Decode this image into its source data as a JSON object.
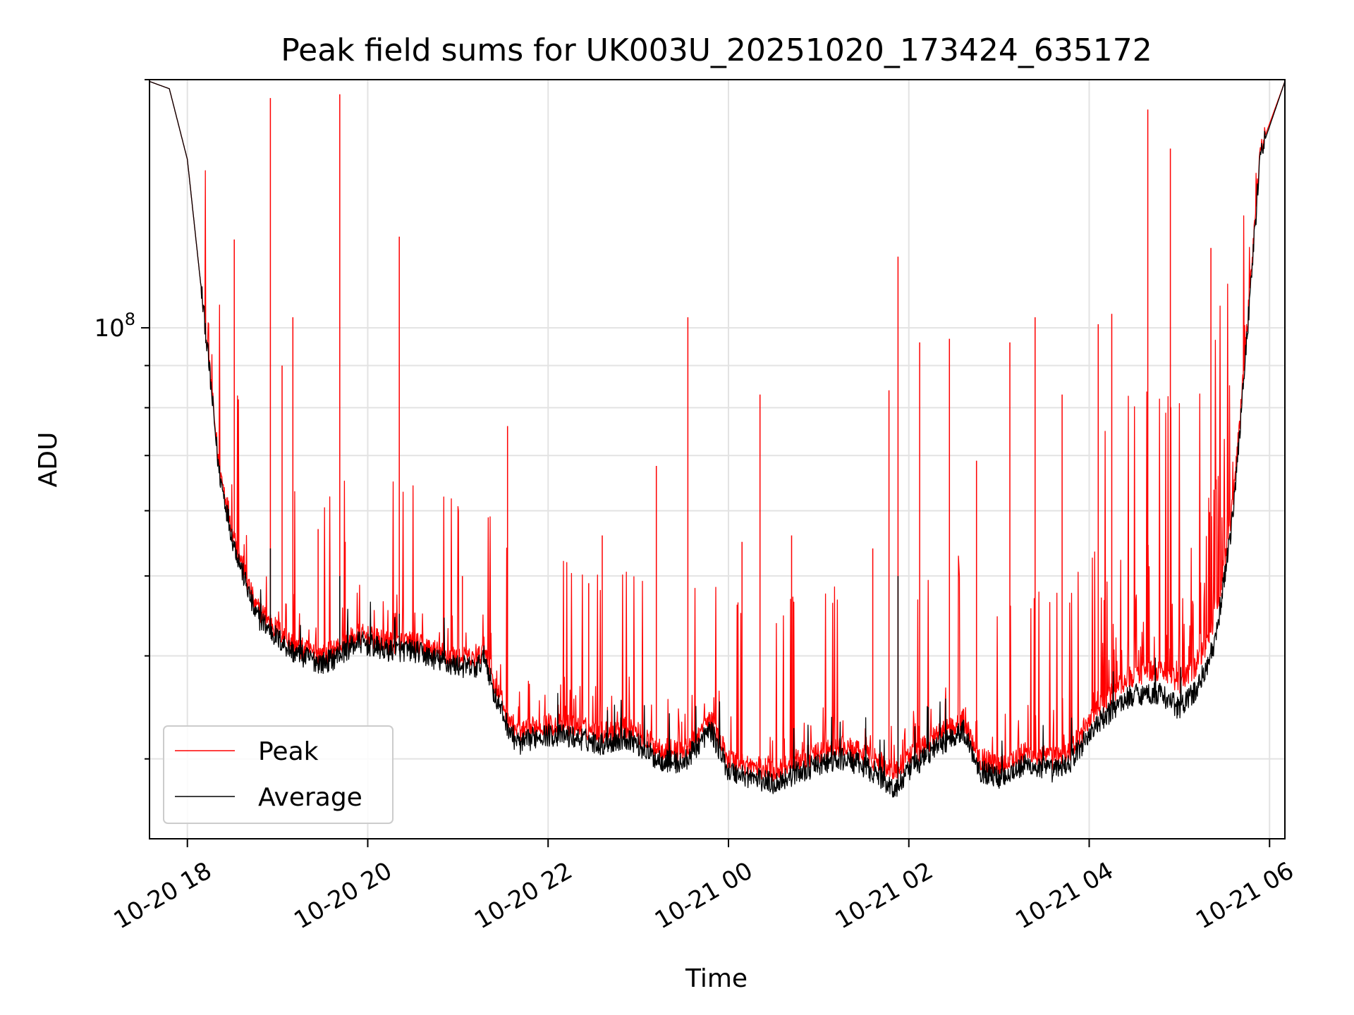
{
  "chart_data": {
    "type": "line",
    "title": "Peak field sums for UK003U_20251020_173424_635172",
    "xlabel": "Time",
    "ylabel": "ADU",
    "x_axis": {
      "kind": "datetime",
      "range_hours_since_2025_10_20_18_00": [
        -0.42,
        12.17
      ],
      "ticks": [
        {
          "hour": 0,
          "label": "10-20 18"
        },
        {
          "hour": 2,
          "label": "10-20 20"
        },
        {
          "hour": 4,
          "label": "10-20 22"
        },
        {
          "hour": 6,
          "label": "10-21 00"
        },
        {
          "hour": 8,
          "label": "10-21 02"
        },
        {
          "hour": 10,
          "label": "10-21 04"
        },
        {
          "hour": 12,
          "label": "10-21 06"
        }
      ]
    },
    "y_axis": {
      "scale": "log",
      "ylim": [
        24000000,
        200000000
      ],
      "major_ticks": [
        {
          "value": 100000000,
          "base": "10",
          "exp": "8"
        }
      ],
      "minor_ticks": [
        30000000,
        40000000,
        50000000,
        60000000,
        70000000,
        80000000,
        90000000,
        200000000
      ]
    },
    "grid": true,
    "legend": {
      "position": "lower-left",
      "entries": [
        "Peak",
        "Average"
      ]
    },
    "series": [
      {
        "name": "Peak",
        "color": "#ff0000",
        "baseline_points": [
          [
            -0.42,
            199000000
          ],
          [
            -0.2,
            195000000
          ],
          [
            0.0,
            160000000
          ],
          [
            0.2,
            100000000
          ],
          [
            0.35,
            68000000
          ],
          [
            0.5,
            57000000
          ],
          [
            0.6,
            52000000
          ],
          [
            0.75,
            46000000
          ],
          [
            1.0,
            43000000
          ],
          [
            1.2,
            41000000
          ],
          [
            1.5,
            40000000
          ],
          [
            1.6,
            40500000
          ],
          [
            1.9,
            42500000
          ],
          [
            2.2,
            41500000
          ],
          [
            2.5,
            41500000
          ],
          [
            2.9,
            40000000
          ],
          [
            3.2,
            39500000
          ],
          [
            3.3,
            41000000
          ],
          [
            3.4,
            37000000
          ],
          [
            3.6,
            33000000
          ],
          [
            3.7,
            32200000
          ],
          [
            3.9,
            33000000
          ],
          [
            4.2,
            33000000
          ],
          [
            4.6,
            32300000
          ],
          [
            4.9,
            32800000
          ],
          [
            5.2,
            31000000
          ],
          [
            5.5,
            30500000
          ],
          [
            5.8,
            33500000
          ],
          [
            6.0,
            30000000
          ],
          [
            6.2,
            29500000
          ],
          [
            6.5,
            29000000
          ],
          [
            6.8,
            30000000
          ],
          [
            7.0,
            30500000
          ],
          [
            7.3,
            31000000
          ],
          [
            7.6,
            30000000
          ],
          [
            7.85,
            29000000
          ],
          [
            8.0,
            30000000
          ],
          [
            8.3,
            32000000
          ],
          [
            8.6,
            33500000
          ],
          [
            8.8,
            30000000
          ],
          [
            9.0,
            29500000
          ],
          [
            9.3,
            30500000
          ],
          [
            9.6,
            30000000
          ],
          [
            9.8,
            30800000
          ],
          [
            10.0,
            33500000
          ],
          [
            10.3,
            36500000
          ],
          [
            10.5,
            38000000
          ],
          [
            10.8,
            38500000
          ],
          [
            11.0,
            37000000
          ],
          [
            11.2,
            39000000
          ],
          [
            11.4,
            44000000
          ],
          [
            11.6,
            62000000
          ],
          [
            11.75,
            100000000
          ],
          [
            11.9,
            165000000
          ],
          [
            12.17,
            199000000
          ]
        ],
        "spikes": [
          [
            0.52,
            128000000
          ],
          [
            0.92,
            190000000
          ],
          [
            1.05,
            90000000
          ],
          [
            1.17,
            103000000
          ],
          [
            1.45,
            57000000
          ],
          [
            1.69,
            192000000
          ],
          [
            1.75,
            55000000
          ],
          [
            2.35,
            129000000
          ],
          [
            3.05,
            50000000
          ],
          [
            3.55,
            76000000
          ],
          [
            4.45,
            49000000
          ],
          [
            4.6,
            56000000
          ],
          [
            5.2,
            68000000
          ],
          [
            5.55,
            103000000
          ],
          [
            6.15,
            55000000
          ],
          [
            6.35,
            83000000
          ],
          [
            6.7,
            56000000
          ],
          [
            7.6,
            54000000
          ],
          [
            7.78,
            84000000
          ],
          [
            7.88,
            122000000
          ],
          [
            8.12,
            96000000
          ],
          [
            8.45,
            97000000
          ],
          [
            8.75,
            69000000
          ],
          [
            9.12,
            96000000
          ],
          [
            9.4,
            103000000
          ],
          [
            9.7,
            83000000
          ],
          [
            10.1,
            101000000
          ],
          [
            10.25,
            104000000
          ],
          [
            10.65,
            184000000
          ],
          [
            10.9,
            165000000
          ],
          [
            11.35,
            125000000
          ]
        ]
      },
      {
        "name": "Average",
        "color": "#000000",
        "baseline_points": [
          [
            -0.42,
            199000000
          ],
          [
            -0.2,
            195000000
          ],
          [
            0.0,
            160000000
          ],
          [
            0.2,
            100000000
          ],
          [
            0.35,
            67000000
          ],
          [
            0.5,
            55500000
          ],
          [
            0.6,
            51000000
          ],
          [
            0.75,
            45000000
          ],
          [
            1.0,
            42000000
          ],
          [
            1.2,
            40200000
          ],
          [
            1.5,
            39200000
          ],
          [
            1.6,
            39600000
          ],
          [
            1.9,
            41600000
          ],
          [
            2.2,
            40600000
          ],
          [
            2.5,
            40600000
          ],
          [
            2.9,
            39100000
          ],
          [
            3.2,
            38600000
          ],
          [
            3.3,
            40000000
          ],
          [
            3.4,
            36000000
          ],
          [
            3.6,
            32000000
          ],
          [
            3.7,
            31200000
          ],
          [
            3.9,
            32100000
          ],
          [
            4.2,
            32000000
          ],
          [
            4.6,
            31300000
          ],
          [
            4.9,
            31800000
          ],
          [
            5.2,
            30000000
          ],
          [
            5.5,
            29600000
          ],
          [
            5.8,
            32600000
          ],
          [
            6.0,
            29000000
          ],
          [
            6.2,
            28600000
          ],
          [
            6.5,
            28000000
          ],
          [
            6.8,
            29000000
          ],
          [
            7.0,
            29500000
          ],
          [
            7.3,
            30000000
          ],
          [
            7.6,
            29000000
          ],
          [
            7.85,
            27500000
          ],
          [
            8.0,
            29000000
          ],
          [
            8.3,
            31000000
          ],
          [
            8.6,
            32500000
          ],
          [
            8.8,
            29000000
          ],
          [
            9.0,
            28500000
          ],
          [
            9.3,
            29500000
          ],
          [
            9.6,
            29000000
          ],
          [
            9.8,
            29800000
          ],
          [
            10.0,
            32200000
          ],
          [
            10.3,
            34800000
          ],
          [
            10.5,
            36000000
          ],
          [
            10.8,
            36000000
          ],
          [
            11.0,
            34500000
          ],
          [
            11.2,
            36500000
          ],
          [
            11.4,
            41500000
          ],
          [
            11.6,
            60000000
          ],
          [
            11.75,
            98000000
          ],
          [
            11.9,
            163000000
          ],
          [
            12.17,
            199000000
          ]
        ],
        "spikes": [
          [
            0.92,
            54000000
          ],
          [
            1.69,
            50000000
          ],
          [
            2.35,
            45000000
          ],
          [
            7.88,
            50000000
          ]
        ]
      }
    ]
  }
}
